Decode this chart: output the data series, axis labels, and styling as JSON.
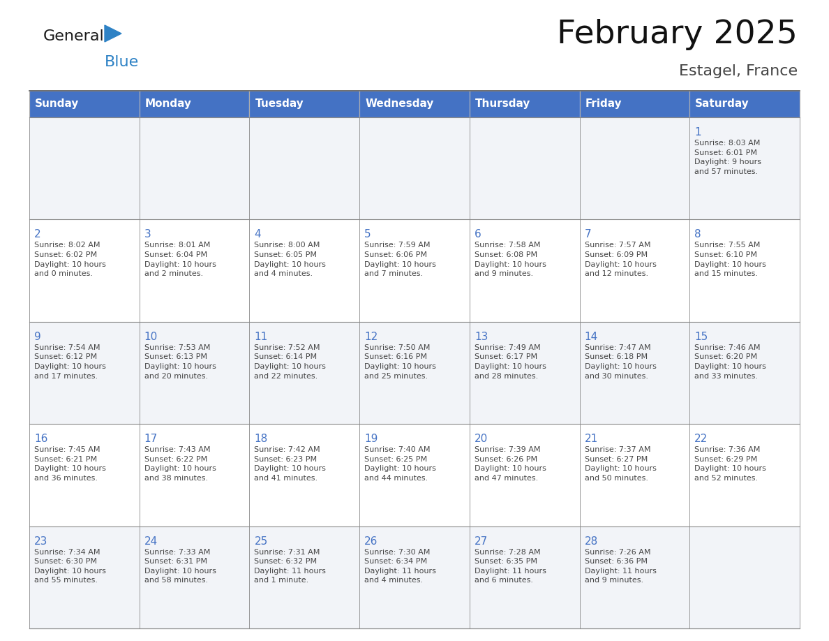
{
  "title": "February 2025",
  "subtitle": "Estagel, France",
  "header_bg": "#4472C4",
  "header_text_color": "#FFFFFF",
  "cell_bg_light": "#F2F4F8",
  "cell_bg_white": "#FFFFFF",
  "day_number_color": "#4472C4",
  "cell_text_color": "#444444",
  "grid_color": "#AAAAAA",
  "days_of_week": [
    "Sunday",
    "Monday",
    "Tuesday",
    "Wednesday",
    "Thursday",
    "Friday",
    "Saturday"
  ],
  "weeks": [
    [
      {
        "day": null,
        "info": null
      },
      {
        "day": null,
        "info": null
      },
      {
        "day": null,
        "info": null
      },
      {
        "day": null,
        "info": null
      },
      {
        "day": null,
        "info": null
      },
      {
        "day": null,
        "info": null
      },
      {
        "day": 1,
        "info": "Sunrise: 8:03 AM\nSunset: 6:01 PM\nDaylight: 9 hours\nand 57 minutes."
      }
    ],
    [
      {
        "day": 2,
        "info": "Sunrise: 8:02 AM\nSunset: 6:02 PM\nDaylight: 10 hours\nand 0 minutes."
      },
      {
        "day": 3,
        "info": "Sunrise: 8:01 AM\nSunset: 6:04 PM\nDaylight: 10 hours\nand 2 minutes."
      },
      {
        "day": 4,
        "info": "Sunrise: 8:00 AM\nSunset: 6:05 PM\nDaylight: 10 hours\nand 4 minutes."
      },
      {
        "day": 5,
        "info": "Sunrise: 7:59 AM\nSunset: 6:06 PM\nDaylight: 10 hours\nand 7 minutes."
      },
      {
        "day": 6,
        "info": "Sunrise: 7:58 AM\nSunset: 6:08 PM\nDaylight: 10 hours\nand 9 minutes."
      },
      {
        "day": 7,
        "info": "Sunrise: 7:57 AM\nSunset: 6:09 PM\nDaylight: 10 hours\nand 12 minutes."
      },
      {
        "day": 8,
        "info": "Sunrise: 7:55 AM\nSunset: 6:10 PM\nDaylight: 10 hours\nand 15 minutes."
      }
    ],
    [
      {
        "day": 9,
        "info": "Sunrise: 7:54 AM\nSunset: 6:12 PM\nDaylight: 10 hours\nand 17 minutes."
      },
      {
        "day": 10,
        "info": "Sunrise: 7:53 AM\nSunset: 6:13 PM\nDaylight: 10 hours\nand 20 minutes."
      },
      {
        "day": 11,
        "info": "Sunrise: 7:52 AM\nSunset: 6:14 PM\nDaylight: 10 hours\nand 22 minutes."
      },
      {
        "day": 12,
        "info": "Sunrise: 7:50 AM\nSunset: 6:16 PM\nDaylight: 10 hours\nand 25 minutes."
      },
      {
        "day": 13,
        "info": "Sunrise: 7:49 AM\nSunset: 6:17 PM\nDaylight: 10 hours\nand 28 minutes."
      },
      {
        "day": 14,
        "info": "Sunrise: 7:47 AM\nSunset: 6:18 PM\nDaylight: 10 hours\nand 30 minutes."
      },
      {
        "day": 15,
        "info": "Sunrise: 7:46 AM\nSunset: 6:20 PM\nDaylight: 10 hours\nand 33 minutes."
      }
    ],
    [
      {
        "day": 16,
        "info": "Sunrise: 7:45 AM\nSunset: 6:21 PM\nDaylight: 10 hours\nand 36 minutes."
      },
      {
        "day": 17,
        "info": "Sunrise: 7:43 AM\nSunset: 6:22 PM\nDaylight: 10 hours\nand 38 minutes."
      },
      {
        "day": 18,
        "info": "Sunrise: 7:42 AM\nSunset: 6:23 PM\nDaylight: 10 hours\nand 41 minutes."
      },
      {
        "day": 19,
        "info": "Sunrise: 7:40 AM\nSunset: 6:25 PM\nDaylight: 10 hours\nand 44 minutes."
      },
      {
        "day": 20,
        "info": "Sunrise: 7:39 AM\nSunset: 6:26 PM\nDaylight: 10 hours\nand 47 minutes."
      },
      {
        "day": 21,
        "info": "Sunrise: 7:37 AM\nSunset: 6:27 PM\nDaylight: 10 hours\nand 50 minutes."
      },
      {
        "day": 22,
        "info": "Sunrise: 7:36 AM\nSunset: 6:29 PM\nDaylight: 10 hours\nand 52 minutes."
      }
    ],
    [
      {
        "day": 23,
        "info": "Sunrise: 7:34 AM\nSunset: 6:30 PM\nDaylight: 10 hours\nand 55 minutes."
      },
      {
        "day": 24,
        "info": "Sunrise: 7:33 AM\nSunset: 6:31 PM\nDaylight: 10 hours\nand 58 minutes."
      },
      {
        "day": 25,
        "info": "Sunrise: 7:31 AM\nSunset: 6:32 PM\nDaylight: 11 hours\nand 1 minute."
      },
      {
        "day": 26,
        "info": "Sunrise: 7:30 AM\nSunset: 6:34 PM\nDaylight: 11 hours\nand 4 minutes."
      },
      {
        "day": 27,
        "info": "Sunrise: 7:28 AM\nSunset: 6:35 PM\nDaylight: 11 hours\nand 6 minutes."
      },
      {
        "day": 28,
        "info": "Sunrise: 7:26 AM\nSunset: 6:36 PM\nDaylight: 11 hours\nand 9 minutes."
      },
      {
        "day": null,
        "info": null
      }
    ]
  ],
  "logo_general_color": "#1a1a1a",
  "logo_blue_color": "#2E82C5",
  "logo_triangle_color": "#2E82C5"
}
